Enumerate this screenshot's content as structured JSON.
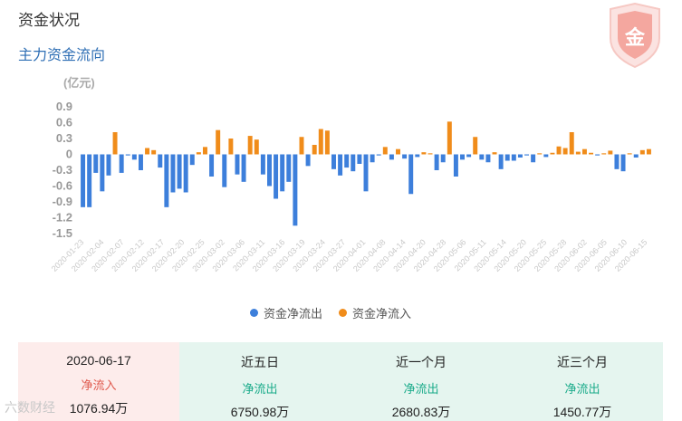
{
  "header": {
    "title": "资金状况",
    "subtitle": "主力资金流向"
  },
  "badge": {
    "char": "金"
  },
  "colors": {
    "outflow": "#3d7fdb",
    "inflow": "#f08c1a",
    "in_text": "#e05a4e",
    "out_text": "#1aab8a"
  },
  "chart_data": {
    "type": "bar",
    "unit_label": "(亿元)",
    "ylim": [
      -1.5,
      0.9
    ],
    "y_ticks": [
      0.9,
      0.6,
      0.3,
      0,
      -0.3,
      -0.6,
      -0.9,
      -1.2,
      -1.5
    ],
    "x_tick_labels": [
      "2020-01-23",
      "2020-02-04",
      "2020-02-07",
      "2020-02-12",
      "2020-02-17",
      "2020-02-20",
      "2020-02-25",
      "2020-03-02",
      "2020-03-06",
      "2020-03-11",
      "2020-03-16",
      "2020-03-19",
      "2020-03-24",
      "2020-03-27",
      "2020-04-01",
      "2020-04-08",
      "2020-04-14",
      "2020-04-20",
      "2020-04-28",
      "2020-05-06",
      "2020-05-11",
      "2020-05-14",
      "2020-05-20",
      "2020-05-25",
      "2020-05-28",
      "2020-06-02",
      "2020-06-05",
      "2020-06-10",
      "2020-06-15"
    ],
    "values": [
      -1.0,
      -1.0,
      -0.35,
      -0.7,
      -0.4,
      0.42,
      -0.35,
      -0.02,
      -0.1,
      -0.3,
      0.12,
      0.08,
      -0.25,
      -1.0,
      -0.72,
      -0.65,
      -0.72,
      -0.2,
      0.04,
      0.14,
      -0.42,
      0.46,
      -0.62,
      0.3,
      -0.38,
      -0.52,
      0.35,
      0.28,
      -0.38,
      -0.6,
      -0.84,
      -0.7,
      -0.52,
      -1.35,
      0.33,
      -0.22,
      0.18,
      0.48,
      0.45,
      -0.28,
      -0.4,
      -0.25,
      -0.32,
      -0.18,
      -0.7,
      -0.15,
      -0.02,
      0.14,
      -0.1,
      0.1,
      -0.08,
      -0.75,
      -0.05,
      0.04,
      0.02,
      -0.3,
      -0.15,
      0.62,
      -0.42,
      -0.1,
      -0.05,
      0.33,
      -0.1,
      -0.15,
      0.04,
      -0.28,
      -0.12,
      -0.12,
      -0.06,
      -0.02,
      -0.15,
      0.02,
      -0.05,
      0.03,
      0.15,
      0.12,
      0.42,
      0.05,
      0.1,
      0.03,
      -0.02,
      0.02,
      0.07,
      -0.28,
      -0.32,
      0.02,
      -0.06,
      0.08,
      0.1
    ],
    "series_names": [
      "资金净流出",
      "资金净流入"
    ]
  },
  "summary": [
    {
      "label": "2020-06-17",
      "dir": "净流入",
      "amount": "1076.94万"
    },
    {
      "label": "近五日",
      "dir": "净流出",
      "amount": "6750.98万"
    },
    {
      "label": "近一个月",
      "dir": "净流出",
      "amount": "2680.83万"
    },
    {
      "label": "近三个月",
      "dir": "净流出",
      "amount": "1450.77万"
    }
  ],
  "watermark": "六数财经"
}
